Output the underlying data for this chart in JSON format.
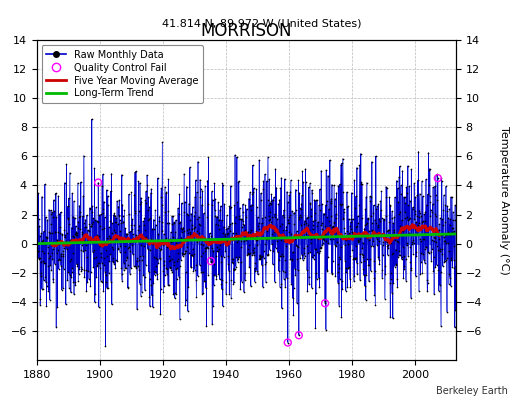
{
  "title": "MORRISON",
  "subtitle": "41.814 N, 89.972 W (United States)",
  "ylabel": "Temperature Anomaly (°C)",
  "credit": "Berkeley Earth",
  "xlim": [
    1880,
    2013
  ],
  "ylim": [
    -8,
    14
  ],
  "yticks": [
    -6,
    -4,
    -2,
    0,
    2,
    4,
    6,
    8,
    10,
    12,
    14
  ],
  "xticks": [
    1880,
    1900,
    1920,
    1940,
    1960,
    1980,
    2000
  ],
  "seed": 42,
  "n_years": 133,
  "start_year": 1880,
  "bar_color": "#4466ee",
  "line_color": "#0000cc",
  "dot_color": "#000000",
  "ma_color": "#cc0000",
  "trend_color": "#00bb00",
  "qc_color": "#ff00ff",
  "background": "#f5f5f5"
}
